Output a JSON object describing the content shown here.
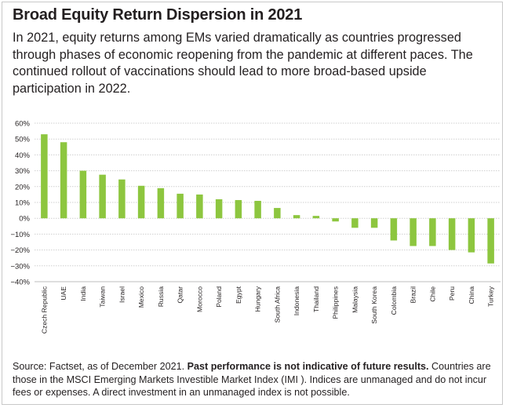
{
  "header": {
    "title": "Broad Equity Return Dispersion in 2021",
    "subtitle": "In 2021, equity returns among EMs varied dramatically as countries progressed through phases of economic reopening from the pandemic at different paces. The continued rollout of vaccinations should lead to more broad-based upside participation in 2022."
  },
  "footer": {
    "source": "Source: Factset, as of December 2021.",
    "disclaimer_bold": "Past performance is not indicative of future results.",
    "note": "Countries are those in the MSCI Emerging Markets Investible Market Index (IMI ). Indices are unmanaged and do not incur fees or expenses. A direct investment in an unmanaged index is not possible."
  },
  "chart_data": {
    "type": "bar",
    "title": "",
    "xlabel": "",
    "ylabel": "",
    "ylim": [
      -40,
      60
    ],
    "y_ticks": [
      "60%",
      "50%",
      "40%",
      "30%",
      "20%",
      "10%",
      "0%",
      "−10%",
      "−20%",
      "−30%",
      "−40%"
    ],
    "grid": true,
    "bar_color": "#8dc63f",
    "categories": [
      "Czech Republic",
      "UAE",
      "India",
      "Taiwan",
      "Israel",
      "Mexico",
      "Russia",
      "Qatar",
      "Morocco",
      "Poland",
      "Egypt",
      "Hungary",
      "South Africa",
      "Indonesia",
      "Thailand",
      "Philippines",
      "Malaysia",
      "South Korea",
      "Colombia",
      "Brazil",
      "Chile",
      "Peru",
      "China",
      "Turkey"
    ],
    "values": [
      53,
      48,
      30,
      27.5,
      24.5,
      20.5,
      19,
      15.5,
      15,
      12,
      11.5,
      11,
      6.5,
      2,
      1.5,
      -2,
      -6,
      -6,
      -14,
      -17.5,
      -17.5,
      -20,
      -21.5,
      -28.5
    ]
  }
}
